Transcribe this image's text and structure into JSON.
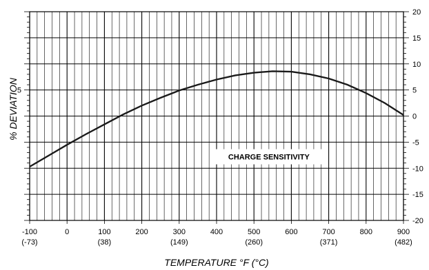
{
  "chart_data": {
    "type": "line",
    "title": "",
    "xlabel": "TEMPERATURE  °F  (°C)",
    "ylabel": "% DEVIATION",
    "xlim": [
      -100,
      900
    ],
    "ylim": [
      -20,
      20
    ],
    "y_axis_side": "right",
    "grid": true,
    "x_ticks": [
      {
        "f": "-100",
        "c": "(-73)"
      },
      {
        "f": "0",
        "c": ""
      },
      {
        "f": "100",
        "c": "(38)"
      },
      {
        "f": "200",
        "c": ""
      },
      {
        "f": "300",
        "c": "(149)"
      },
      {
        "f": "400",
        "c": ""
      },
      {
        "f": "500",
        "c": "(260)"
      },
      {
        "f": "600",
        "c": ""
      },
      {
        "f": "700",
        "c": "(371)"
      },
      {
        "f": "800",
        "c": ""
      },
      {
        "f": "900",
        "c": "(482)"
      }
    ],
    "y_ticks": [
      "20",
      "15",
      "10",
      "5",
      "0",
      "-5",
      "-10",
      "-15",
      "-20"
    ],
    "left_y_ticks": [
      "5"
    ],
    "annotation": "CHARGE SENSITIVITY",
    "series": [
      {
        "x": [
          -100,
          -50,
          0,
          50,
          100,
          150,
          200,
          250,
          300,
          350,
          400,
          450,
          500,
          550,
          600,
          650,
          700,
          750,
          800,
          850,
          900
        ],
        "y": [
          -9.7,
          -7.6,
          -5.5,
          -3.5,
          -1.6,
          0.3,
          2.0,
          3.5,
          4.9,
          6.0,
          7.0,
          7.8,
          8.3,
          8.6,
          8.5,
          8.0,
          7.2,
          6.0,
          4.4,
          2.5,
          0.2
        ]
      }
    ]
  }
}
